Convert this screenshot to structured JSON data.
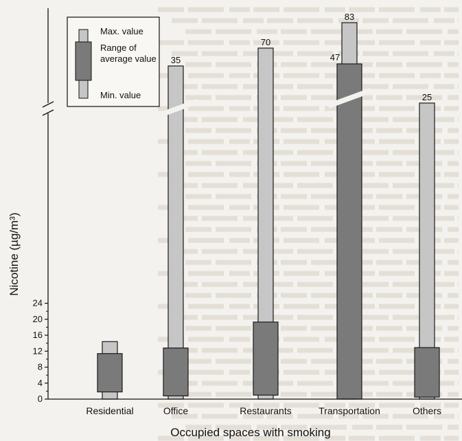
{
  "chart_data": {
    "type": "bar",
    "title": "",
    "xlabel": "Occupied spaces with smoking",
    "ylabel": "Nicotine (µg/m³)",
    "ylim": [
      0,
      26
    ],
    "yticks": [
      0,
      4,
      8,
      12,
      16,
      20,
      24
    ],
    "axis_break": true,
    "categories": [
      "Residential",
      "Office",
      "Restaurants",
      "Transportation",
      "Others"
    ],
    "series": [
      {
        "name": "Min. value",
        "values": [
          0,
          0,
          0,
          0,
          0
        ]
      },
      {
        "name": "Range of average value",
        "values": [
          [
            1.8,
            11.4
          ],
          [
            0.8,
            12.8
          ],
          [
            1,
            19.3
          ],
          [
            0,
            47
          ],
          [
            0.5,
            12.9
          ]
        ]
      },
      {
        "name": "Max. value",
        "values": [
          14.4,
          35,
          70,
          83,
          25
        ]
      }
    ],
    "data_labels": [
      {
        "category": "Office",
        "text": "35"
      },
      {
        "category": "Restaurants",
        "text": "70"
      },
      {
        "category": "Transportation",
        "text": "47"
      },
      {
        "category": "Transportation",
        "text": "83"
      },
      {
        "category": "Others",
        "text": "25"
      }
    ],
    "legend": {
      "placement": "top-left",
      "entries": [
        "Max. value",
        "Range of average value",
        "Min. value"
      ]
    },
    "colors": {
      "light_bar": "#c6c6c6",
      "dark_bar": "#7a7a7a",
      "outline": "#1a1a1a"
    }
  }
}
